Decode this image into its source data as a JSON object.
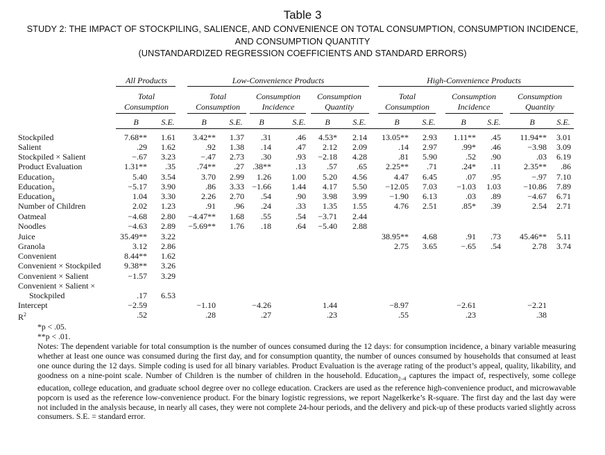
{
  "table_number": "Table 3",
  "title_lines": [
    "STUDY 2: THE IMPACT OF STOCKPILING, SALIENCE, AND CONVENIENCE ON TOTAL CONSUMPTION, CONSUMPTION INCIDENCE,",
    "AND CONSUMPTION QUANTITY",
    "(UNSTANDARDIZED REGRESSION COEFFICIENTS AND STANDARD ERRORS)"
  ],
  "group_headers": [
    "All Products",
    "Low-Convenience Products",
    "High-Convenience Products"
  ],
  "sub_headers": [
    [
      "Total",
      "Consumption"
    ],
    [
      "Total",
      "Consumption"
    ],
    [
      "Consumption",
      "Incidence"
    ],
    [
      "Consumption",
      "Quantity"
    ],
    [
      "Total",
      "Consumption"
    ],
    [
      "Consumption",
      "Incidence"
    ],
    [
      "Consumption",
      "Quantity"
    ]
  ],
  "col_labels": [
    "B",
    "S.E.",
    "B",
    "S.E.",
    "B",
    "S.E.",
    "B",
    "S.E.",
    "B",
    "S.E.",
    "B",
    "S.E.",
    "B",
    "S.E."
  ],
  "rows": [
    {
      "label": [
        "Stockpiled"
      ],
      "cells": [
        "7.68**",
        "1.61",
        "3.42**",
        "1.37",
        ".31",
        ".46",
        "4.53*",
        "2.14",
        "13.05**",
        "2.93",
        "1.11**",
        ".45",
        "11.94**",
        "3.01"
      ]
    },
    {
      "label": [
        "Salient"
      ],
      "cells": [
        ".29",
        "1.62",
        ".92",
        "1.38",
        ".14",
        ".47",
        "2.12",
        "2.09",
        ".14",
        "2.97",
        ".99*",
        ".46",
        "−3.98",
        "3.09"
      ]
    },
    {
      "label": [
        "Stockpiled × Salient"
      ],
      "cells": [
        "−.67",
        "3.23",
        "−.47",
        "2.73",
        ".30",
        ".93",
        "−2.18",
        "4.28",
        ".81",
        "5.90",
        ".52",
        ".90",
        ".03",
        "6.19"
      ]
    },
    {
      "label": [
        "Product Evaluation"
      ],
      "cells": [
        "1.31**",
        ".35",
        ".74**",
        ".27",
        ".38**",
        ".13",
        ".57",
        ".65",
        "2.25**",
        ".71",
        ".24*",
        ".11",
        "2.35**",
        ".86"
      ]
    },
    {
      "label": [
        "Education",
        "2"
      ],
      "cells": [
        "5.40",
        "3.54",
        "3.70",
        "2.99",
        "1.26",
        "1.00",
        "5.20",
        "4.56",
        "4.47",
        "6.45",
        ".07",
        ".95",
        "−.97",
        "7.10"
      ]
    },
    {
      "label": [
        "Education",
        "3"
      ],
      "cells": [
        "−5.17",
        "3.90",
        ".86",
        "3.33",
        "−1.66",
        "1.44",
        "4.17",
        "5.50",
        "−12.05",
        "7.03",
        "−1.03",
        "1.03",
        "−10.86",
        "7.89"
      ]
    },
    {
      "label": [
        "Education",
        "4"
      ],
      "cells": [
        "1.04",
        "3.30",
        "2.26",
        "2.70",
        ".54",
        ".90",
        "3.98",
        "3.99",
        "−1.90",
        "6.13",
        ".03",
        ".89",
        "−4.67",
        "6.71"
      ]
    },
    {
      "label": [
        "Number of Children"
      ],
      "cells": [
        "2.02",
        "1.23",
        ".91",
        ".96",
        ".24",
        ".33",
        "1.35",
        "1.55",
        "4.76",
        "2.51",
        ".85*",
        ".39",
        "2.54",
        "2.71"
      ]
    },
    {
      "label": [
        "Oatmeal"
      ],
      "cells": [
        "−4.68",
        "2.80",
        "−4.47**",
        "1.68",
        ".55",
        ".54",
        "−3.71",
        "2.44",
        "",
        "",
        "",
        "",
        "",
        ""
      ]
    },
    {
      "label": [
        "Noodles"
      ],
      "cells": [
        "−4.63",
        "2.89",
        "−5.69**",
        "1.76",
        ".18",
        ".64",
        "−5.40",
        "2.88",
        "",
        "",
        "",
        "",
        "",
        ""
      ]
    },
    {
      "label": [
        "Juice"
      ],
      "cells": [
        "35.49**",
        "3.22",
        "",
        "",
        "",
        "",
        "",
        "",
        "38.95**",
        "4.68",
        ".91",
        ".73",
        "45.46**",
        "5.11"
      ]
    },
    {
      "label": [
        "Granola"
      ],
      "cells": [
        "3.12",
        "2.86",
        "",
        "",
        "",
        "",
        "",
        "",
        "2.75",
        "3.65",
        "−.65",
        ".54",
        "2.78",
        "3.74"
      ]
    },
    {
      "label": [
        "Convenient"
      ],
      "cells": [
        "8.44**",
        "1.62",
        "",
        "",
        "",
        "",
        "",
        "",
        "",
        "",
        "",
        "",
        "",
        ""
      ]
    },
    {
      "label": [
        "Convenient × Stockpiled"
      ],
      "cells": [
        "9.38**",
        "3.26",
        "",
        "",
        "",
        "",
        "",
        "",
        "",
        "",
        "",
        "",
        "",
        ""
      ]
    },
    {
      "label": [
        "Convenient × Salient"
      ],
      "cells": [
        "−1.57",
        "3.29",
        "",
        "",
        "",
        "",
        "",
        "",
        "",
        "",
        "",
        "",
        "",
        ""
      ]
    },
    {
      "label": [
        "Convenient × Salient ×"
      ],
      "cells": [
        "",
        "",
        "",
        "",
        "",
        "",
        "",
        "",
        "",
        "",
        "",
        "",
        "",
        ""
      ]
    },
    {
      "label": [
        "Stockpiled"
      ],
      "cells": [
        ".17",
        "6.53",
        "",
        "",
        "",
        "",
        "",
        "",
        "",
        "",
        "",
        "",
        "",
        ""
      ]
    },
    {
      "label": [
        "Intercept"
      ],
      "cells": [
        "−2.59",
        "",
        "−1.10",
        "",
        "−4.26",
        "",
        "1.44",
        "",
        "−8.97",
        "",
        "−2.61",
        "",
        "−2.21",
        ""
      ]
    },
    {
      "label": [
        "R",
        "2"
      ],
      "cells": [
        ".52",
        "",
        ".28",
        "",
        ".27",
        "",
        ".23",
        "",
        ".55",
        "",
        ".23",
        "",
        ".38",
        ""
      ]
    }
  ],
  "notes": {
    "sig1": "*p < .05.",
    "sig2": "**p < .01.",
    "label": "Notes:",
    "text_a": "The dependent variable for total consumption is the number of ounces consumed during the 12 days: for consumption incidence, a binary variable measuring whether at least one ounce was consumed during the first day, and for consumption quantity, the number of ounces consumed by households that consumed at least one ounce during the 12 days. Simple coding is used for all binary variables. Product Evaluation is the average rating of the product’s appeal, quality, likability, and goodness on a nine-point scale. Number of Children is the number of children in the household. Education",
    "sub": "2–4",
    "text_b": "captures the impact of, respectively, some college education, college education, and graduate school degree over no college education. Crackers are used as the reference high-convenience product, and microwavable popcorn is used as the reference low-convenience product. For the binary logistic regressions, we report Nagelkerke’s R-square. The first day and the last day were not included in the analysis because, in nearly all cases, they were not complete 24-hour periods, and the delivery and pick-up of these products varied slightly across consumers. S.E. = standard error."
  }
}
